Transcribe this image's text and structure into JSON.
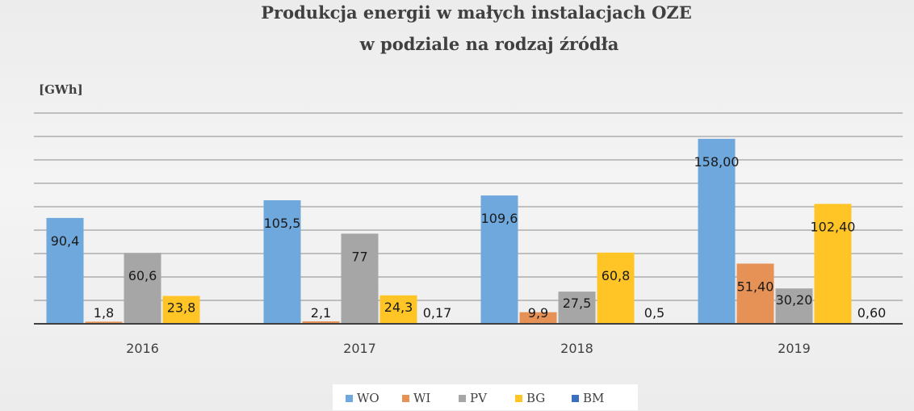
{
  "chart_data": {
    "type": "bar",
    "title": "Produkcja energii w małych instalacjach OZE",
    "subtitle": "w podziale na rodzaj źródła",
    "ylabel": "[GWh]",
    "xlabel": "",
    "ylim": [
      0,
      180
    ],
    "grid": true,
    "legend_position": "bottom",
    "categories": [
      "2016",
      "2017",
      "2018",
      "2019"
    ],
    "series": [
      {
        "name": "WO",
        "color": "#6fa8dc",
        "values": [
          90.4,
          105.5,
          109.6,
          158.0
        ],
        "labels": [
          "90,4",
          "105,5",
          "109,6",
          "158,00"
        ]
      },
      {
        "name": "WI",
        "color": "#e69156",
        "values": [
          1.8,
          2.1,
          9.9,
          51.4
        ],
        "labels": [
          "1,8",
          "2,1",
          "9,9",
          "51,40"
        ]
      },
      {
        "name": "PV",
        "color": "#a6a6a6",
        "values": [
          60.6,
          77,
          27.5,
          30.2
        ],
        "labels": [
          "60,6",
          "77",
          "27,5",
          "30,20"
        ]
      },
      {
        "name": "BG",
        "color": "#ffc526",
        "values": [
          23.8,
          24.3,
          60.8,
          102.4
        ],
        "labels": [
          "23,8",
          "24,3",
          "60,8",
          "102,40"
        ]
      },
      {
        "name": "BM",
        "color": "#3c6fbe",
        "values": [
          0,
          0.17,
          0.5,
          0.6
        ],
        "labels": [
          "",
          "0,17",
          "0,5",
          "0,60"
        ]
      }
    ]
  }
}
